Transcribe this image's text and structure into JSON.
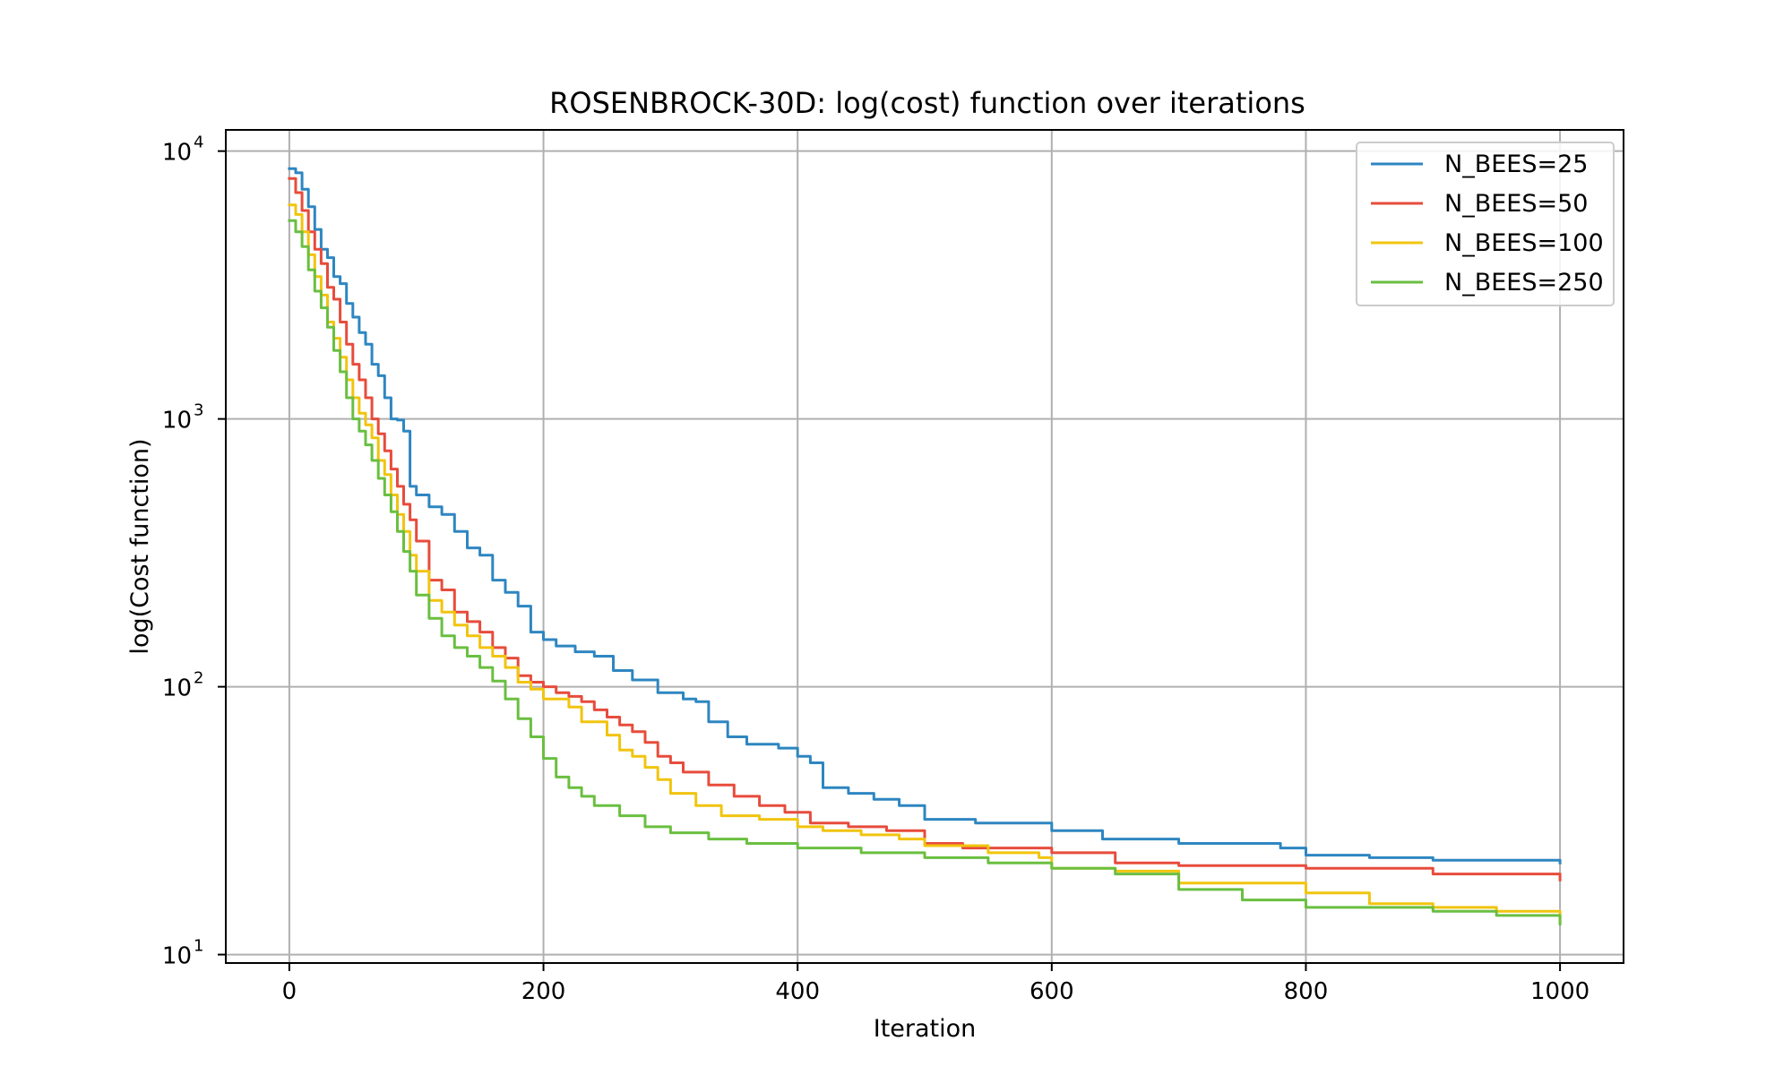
{
  "chart_data": {
    "type": "line",
    "title": "ROSENBROCK-30D: log(cost) function over iterations",
    "xlabel": "Iteration",
    "ylabel": "log(Cost function)",
    "xlim": [
      -50,
      1050
    ],
    "ylim": [
      9.3,
      12000
    ],
    "yscale": "log",
    "grid": true,
    "legend_position": "top-right",
    "x_ticks": [
      0,
      200,
      400,
      600,
      800,
      1000
    ],
    "x_tick_labels": [
      "0",
      "200",
      "400",
      "600",
      "800",
      "1000"
    ],
    "y_ticks": [
      10,
      100,
      1000,
      10000
    ],
    "y_tick_labels": [
      {
        "base": "10",
        "exp": "1"
      },
      {
        "base": "10",
        "exp": "2"
      },
      {
        "base": "10",
        "exp": "3"
      },
      {
        "base": "10",
        "exp": "4"
      }
    ],
    "series": [
      {
        "name": "N_BEES=25",
        "color": "#2e86c1",
        "points": [
          [
            0,
            8600
          ],
          [
            5,
            8300
          ],
          [
            10,
            7200
          ],
          [
            15,
            6200
          ],
          [
            20,
            5100
          ],
          [
            25,
            4300
          ],
          [
            30,
            4000
          ],
          [
            35,
            3400
          ],
          [
            40,
            3200
          ],
          [
            45,
            2700
          ],
          [
            50,
            2400
          ],
          [
            55,
            2100
          ],
          [
            60,
            1900
          ],
          [
            65,
            1600
          ],
          [
            70,
            1450
          ],
          [
            75,
            1200
          ],
          [
            80,
            1000
          ],
          [
            85,
            990
          ],
          [
            90,
            900
          ],
          [
            95,
            560
          ],
          [
            100,
            520
          ],
          [
            110,
            470
          ],
          [
            120,
            440
          ],
          [
            130,
            380
          ],
          [
            140,
            330
          ],
          [
            150,
            310
          ],
          [
            160,
            250
          ],
          [
            170,
            225
          ],
          [
            180,
            200
          ],
          [
            190,
            160
          ],
          [
            200,
            150
          ],
          [
            210,
            142
          ],
          [
            225,
            135
          ],
          [
            240,
            130
          ],
          [
            255,
            115
          ],
          [
            270,
            106
          ],
          [
            290,
            95
          ],
          [
            310,
            90
          ],
          [
            320,
            88
          ],
          [
            330,
            74
          ],
          [
            345,
            65
          ],
          [
            360,
            61
          ],
          [
            385,
            59
          ],
          [
            400,
            55
          ],
          [
            410,
            52
          ],
          [
            420,
            42
          ],
          [
            440,
            40
          ],
          [
            460,
            38
          ],
          [
            480,
            36
          ],
          [
            500,
            32
          ],
          [
            540,
            31
          ],
          [
            600,
            29
          ],
          [
            640,
            27
          ],
          [
            700,
            26
          ],
          [
            780,
            25
          ],
          [
            800,
            23.5
          ],
          [
            850,
            23
          ],
          [
            900,
            22.5
          ],
          [
            1000,
            22
          ]
        ]
      },
      {
        "name": "N_BEES=50",
        "color": "#e74c3c",
        "points": [
          [
            0,
            7900
          ],
          [
            5,
            7000
          ],
          [
            10,
            6000
          ],
          [
            15,
            5000
          ],
          [
            20,
            4300
          ],
          [
            25,
            3800
          ],
          [
            30,
            3100
          ],
          [
            35,
            2800
          ],
          [
            40,
            2300
          ],
          [
            45,
            1900
          ],
          [
            50,
            1600
          ],
          [
            55,
            1400
          ],
          [
            60,
            1200
          ],
          [
            65,
            1000
          ],
          [
            70,
            880
          ],
          [
            75,
            760
          ],
          [
            80,
            650
          ],
          [
            85,
            560
          ],
          [
            90,
            480
          ],
          [
            95,
            420
          ],
          [
            100,
            350
          ],
          [
            110,
            250
          ],
          [
            120,
            230
          ],
          [
            130,
            190
          ],
          [
            140,
            175
          ],
          [
            150,
            160
          ],
          [
            160,
            140
          ],
          [
            170,
            128
          ],
          [
            180,
            110
          ],
          [
            190,
            104
          ],
          [
            200,
            100
          ],
          [
            210,
            95
          ],
          [
            220,
            92
          ],
          [
            230,
            88
          ],
          [
            240,
            82
          ],
          [
            250,
            77
          ],
          [
            260,
            72
          ],
          [
            270,
            68
          ],
          [
            280,
            62
          ],
          [
            290,
            55
          ],
          [
            300,
            52
          ],
          [
            310,
            48
          ],
          [
            330,
            43
          ],
          [
            350,
            39
          ],
          [
            370,
            36
          ],
          [
            390,
            34
          ],
          [
            410,
            31
          ],
          [
            440,
            30
          ],
          [
            470,
            29
          ],
          [
            500,
            26
          ],
          [
            530,
            25
          ],
          [
            600,
            24
          ],
          [
            650,
            22
          ],
          [
            700,
            21.5
          ],
          [
            800,
            21
          ],
          [
            900,
            20
          ],
          [
            1000,
            19
          ]
        ]
      },
      {
        "name": "N_BEES=100",
        "color": "#f1c40f",
        "points": [
          [
            0,
            6300
          ],
          [
            5,
            5800
          ],
          [
            10,
            5000
          ],
          [
            15,
            4100
          ],
          [
            20,
            3400
          ],
          [
            25,
            2900
          ],
          [
            30,
            2300
          ],
          [
            35,
            2000
          ],
          [
            40,
            1700
          ],
          [
            45,
            1400
          ],
          [
            50,
            1200
          ],
          [
            55,
            1050
          ],
          [
            60,
            950
          ],
          [
            65,
            850
          ],
          [
            70,
            700
          ],
          [
            75,
            620
          ],
          [
            80,
            520
          ],
          [
            85,
            440
          ],
          [
            90,
            380
          ],
          [
            95,
            310
          ],
          [
            100,
            270
          ],
          [
            110,
            210
          ],
          [
            120,
            190
          ],
          [
            130,
            170
          ],
          [
            140,
            155
          ],
          [
            150,
            140
          ],
          [
            160,
            130
          ],
          [
            170,
            118
          ],
          [
            180,
            104
          ],
          [
            190,
            98
          ],
          [
            200,
            90
          ],
          [
            220,
            84
          ],
          [
            230,
            74
          ],
          [
            250,
            66
          ],
          [
            260,
            58
          ],
          [
            270,
            55
          ],
          [
            280,
            50
          ],
          [
            290,
            45
          ],
          [
            300,
            40
          ],
          [
            320,
            36
          ],
          [
            340,
            33
          ],
          [
            370,
            32
          ],
          [
            400,
            30
          ],
          [
            420,
            29
          ],
          [
            450,
            28
          ],
          [
            480,
            27
          ],
          [
            500,
            25.5
          ],
          [
            550,
            24
          ],
          [
            590,
            23
          ],
          [
            600,
            21
          ],
          [
            650,
            20.5
          ],
          [
            700,
            18.5
          ],
          [
            800,
            17
          ],
          [
            850,
            15.5
          ],
          [
            900,
            15
          ],
          [
            950,
            14.5
          ],
          [
            1000,
            13.5
          ]
        ]
      },
      {
        "name": "N_BEES=250",
        "color": "#6abf40",
        "points": [
          [
            0,
            5500
          ],
          [
            5,
            5000
          ],
          [
            10,
            4400
          ],
          [
            15,
            3600
          ],
          [
            20,
            3000
          ],
          [
            25,
            2600
          ],
          [
            30,
            2200
          ],
          [
            35,
            1800
          ],
          [
            40,
            1500
          ],
          [
            45,
            1200
          ],
          [
            50,
            1000
          ],
          [
            55,
            900
          ],
          [
            60,
            800
          ],
          [
            65,
            700
          ],
          [
            70,
            600
          ],
          [
            75,
            520
          ],
          [
            80,
            450
          ],
          [
            85,
            380
          ],
          [
            90,
            320
          ],
          [
            95,
            270
          ],
          [
            100,
            220
          ],
          [
            110,
            180
          ],
          [
            120,
            155
          ],
          [
            130,
            140
          ],
          [
            140,
            130
          ],
          [
            150,
            118
          ],
          [
            160,
            105
          ],
          [
            170,
            90
          ],
          [
            180,
            76
          ],
          [
            190,
            65
          ],
          [
            200,
            54
          ],
          [
            210,
            46
          ],
          [
            220,
            42
          ],
          [
            230,
            39
          ],
          [
            240,
            36
          ],
          [
            260,
            33
          ],
          [
            280,
            30
          ],
          [
            300,
            28.5
          ],
          [
            330,
            27
          ],
          [
            360,
            26
          ],
          [
            400,
            25
          ],
          [
            450,
            24
          ],
          [
            500,
            23
          ],
          [
            550,
            22
          ],
          [
            600,
            21
          ],
          [
            650,
            20
          ],
          [
            700,
            17.5
          ],
          [
            750,
            16
          ],
          [
            800,
            15
          ],
          [
            900,
            14.5
          ],
          [
            950,
            14
          ],
          [
            1000,
            13
          ]
        ]
      }
    ]
  }
}
